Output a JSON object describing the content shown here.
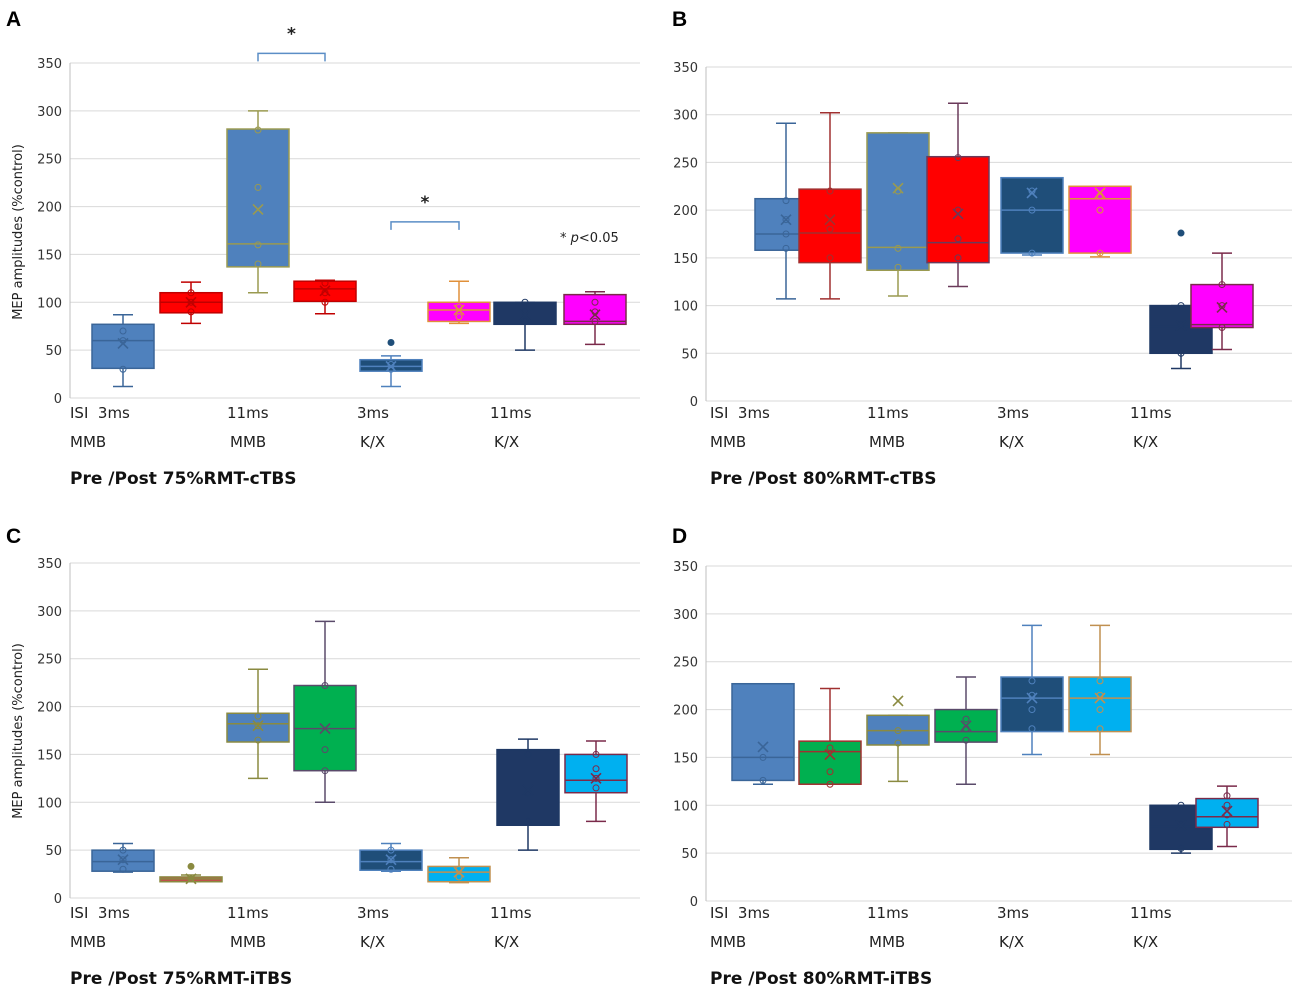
{
  "figure": {
    "panels": [
      "A",
      "B",
      "C",
      "D"
    ]
  },
  "chart_data": [
    {
      "panel": "A",
      "type": "box",
      "caption": "Pre /Post 75%RMT-cTBS",
      "ylabel": "MEP amplitudes (%control)",
      "ylim": [
        0,
        350
      ],
      "yticks": [
        0,
        50,
        100,
        150,
        200,
        250,
        300,
        350
      ],
      "x_row1": [
        "ISI  3ms",
        "11ms",
        "3ms",
        "11ms"
      ],
      "x_row2": [
        "MMB",
        "MMB",
        "K/X",
        "K/X"
      ],
      "significance": [
        {
          "between": [
            2,
            3
          ],
          "label": "*",
          "y": 360
        },
        {
          "between": [
            4,
            5
          ],
          "label": "*",
          "y": 184
        }
      ],
      "note": {
        "star": "*",
        "p": "p",
        "rest": "<0.05"
      },
      "series": [
        {
          "name": "MMB 3ms pre",
          "fill": "#4f81bd",
          "stroke": "#3a6598",
          "min": 12,
          "q1": 31,
          "median": 60,
          "q3": 77,
          "max": 87,
          "mean": 57,
          "points": [
            30,
            60,
            70
          ],
          "outliers": []
        },
        {
          "name": "MMB 3ms post",
          "fill": "#ff0000",
          "stroke": "#c00000",
          "min": 78,
          "q1": 89,
          "median": 100,
          "q3": 110,
          "max": 121,
          "mean": 100,
          "points": [
            90,
            100,
            110
          ],
          "outliers": []
        },
        {
          "name": "MMB 11ms pre",
          "fill": "#4f81bd",
          "stroke": "#9a9a50",
          "min": 110,
          "q1": 137,
          "median": 161,
          "q3": 281,
          "max": 300,
          "mean": 197,
          "points": [
            140,
            160,
            220,
            280
          ],
          "outliers": []
        },
        {
          "name": "MMB 11ms post",
          "fill": "#ff0000",
          "stroke": "#c00000",
          "min": 88,
          "q1": 101,
          "median": 114,
          "q3": 122,
          "max": 123,
          "mean": 112,
          "points": [
            100,
            110,
            120
          ],
          "outliers": []
        },
        {
          "name": "K/X 3ms pre",
          "fill": "#1f4e79",
          "stroke": "#4f81bd",
          "min": 12,
          "q1": 28,
          "median": 33,
          "q3": 40,
          "max": 44,
          "mean": 33,
          "points": [
            30,
            35
          ],
          "outliers": [
            58
          ]
        },
        {
          "name": "K/X 3ms post",
          "fill": "#ff00ff",
          "stroke": "#e0903a",
          "min": 78,
          "q1": 80,
          "median": 92,
          "q3": 100,
          "max": 122,
          "mean": 92,
          "points": [
            85,
            95
          ],
          "outliers": []
        },
        {
          "name": "K/X 11ms pre",
          "fill": "#1f3864",
          "stroke": "#1f3864",
          "min": 50,
          "q1": 77,
          "median": 87,
          "q3": 100,
          "max": 100,
          "mean": 87,
          "points": [
            80,
            90,
            100
          ],
          "outliers": []
        },
        {
          "name": "K/X 11ms post",
          "fill": "#ff00ff",
          "stroke": "#7a2a4a",
          "min": 56,
          "q1": 77,
          "median": 80,
          "q3": 108,
          "max": 111,
          "mean": 87,
          "points": [
            80,
            90,
            100
          ],
          "outliers": []
        }
      ]
    },
    {
      "panel": "B",
      "type": "box",
      "caption": "Pre /Post 80%RMT-cTBS",
      "ylabel": "",
      "ylim": [
        0,
        350
      ],
      "yticks": [
        0,
        50,
        100,
        150,
        200,
        250,
        300,
        350
      ],
      "x_row1": [
        "ISI  3ms",
        "11ms",
        "3ms",
        "11ms"
      ],
      "x_row2": [
        "MMB",
        "MMB",
        "K/X",
        "K/X"
      ],
      "significance": [],
      "series": [
        {
          "name": "MMB 3ms pre",
          "fill": "#4f81bd",
          "stroke": "#3a6598",
          "min": 107,
          "q1": 158,
          "median": 175,
          "q3": 212,
          "max": 291,
          "mean": 190,
          "points": [
            160,
            175,
            190,
            210
          ],
          "outliers": []
        },
        {
          "name": "MMB 3ms post",
          "fill": "#ff0000",
          "stroke": "#a03030",
          "min": 107,
          "q1": 145,
          "median": 176,
          "q3": 222,
          "max": 302,
          "mean": 190,
          "points": [
            150,
            180,
            220
          ],
          "outliers": []
        },
        {
          "name": "MMB 11ms pre",
          "fill": "#4f81bd",
          "stroke": "#9a9a50",
          "min": 110,
          "q1": 137,
          "median": 161,
          "q3": 281,
          "max": 281,
          "mean": 223,
          "points": [
            140,
            160,
            220
          ],
          "outliers": []
        },
        {
          "name": "MMB 11ms post",
          "fill": "#ff0000",
          "stroke": "#6a3a5a",
          "min": 120,
          "q1": 145,
          "median": 166,
          "q3": 256,
          "max": 312,
          "mean": 196,
          "points": [
            150,
            170,
            200,
            255
          ],
          "outliers": []
        },
        {
          "name": "K/X 3ms pre",
          "fill": "#1f4e79",
          "stroke": "#4f81bd",
          "min": 153,
          "q1": 155,
          "median": 200,
          "q3": 234,
          "max": 234,
          "mean": 218,
          "points": [
            155,
            200,
            220
          ],
          "outliers": []
        },
        {
          "name": "K/X 3ms post",
          "fill": "#ff00ff",
          "stroke": "#e0903a",
          "min": 151,
          "q1": 155,
          "median": 212,
          "q3": 225,
          "max": 225,
          "mean": 218,
          "points": [
            155,
            200,
            215
          ],
          "outliers": []
        },
        {
          "name": "K/X 11ms pre",
          "fill": "#1f3864",
          "stroke": "#1f3864",
          "min": 34,
          "q1": 50,
          "median": 78,
          "q3": 100,
          "max": 100,
          "mean": 79,
          "points": [
            50,
            80,
            100
          ],
          "outliers": [
            176
          ]
        },
        {
          "name": "K/X 11ms post",
          "fill": "#ff00ff",
          "stroke": "#7a2a4a",
          "min": 54,
          "q1": 77,
          "median": 80,
          "q3": 122,
          "max": 155,
          "mean": 98,
          "points": [
            77,
            100,
            122
          ],
          "outliers": []
        }
      ]
    },
    {
      "panel": "C",
      "type": "box",
      "caption": "Pre /Post 75%RMT-iTBS",
      "ylabel": "MEP amplitudes (%control)",
      "ylim": [
        0,
        350
      ],
      "yticks": [
        0,
        50,
        100,
        150,
        200,
        250,
        300,
        350
      ],
      "x_row1": [
        "ISI  3ms",
        "11ms",
        "3ms",
        "11ms"
      ],
      "x_row2": [
        "MMB",
        "MMB",
        "K/X",
        "K/X"
      ],
      "significance": [],
      "series": [
        {
          "name": "MMB 3ms pre",
          "fill": "#4f81bd",
          "stroke": "#3a6598",
          "min": 27,
          "q1": 28,
          "median": 38,
          "q3": 50,
          "max": 57,
          "mean": 40,
          "points": [
            30,
            40,
            50
          ],
          "outliers": []
        },
        {
          "name": "MMB 3ms post",
          "fill": "#c0504d",
          "stroke": "#8a8a40",
          "min": 17,
          "q1": 17,
          "median": 20,
          "q3": 22,
          "max": 24,
          "mean": 20,
          "points": [
            20
          ],
          "outliers": [
            33
          ]
        },
        {
          "name": "MMB 11ms pre",
          "fill": "#4f81bd",
          "stroke": "#8a8a40",
          "min": 125,
          "q1": 163,
          "median": 182,
          "q3": 193,
          "max": 239,
          "mean": 180,
          "points": [
            165,
            180,
            190
          ],
          "outliers": []
        },
        {
          "name": "MMB 11ms post",
          "fill": "#00b050",
          "stroke": "#5a4a6a",
          "min": 100,
          "q1": 133,
          "median": 177,
          "q3": 222,
          "max": 289,
          "mean": 177,
          "points": [
            133,
            155,
            222
          ],
          "outliers": []
        },
        {
          "name": "K/X 3ms pre",
          "fill": "#1f4e79",
          "stroke": "#4f81bd",
          "min": 28,
          "q1": 29,
          "median": 38,
          "q3": 50,
          "max": 57,
          "mean": 40,
          "points": [
            30,
            40,
            50
          ],
          "outliers": []
        },
        {
          "name": "K/X 3ms post",
          "fill": "#00b0f0",
          "stroke": "#c09050",
          "min": 16,
          "q1": 17,
          "median": 27,
          "q3": 33,
          "max": 42,
          "mean": 27,
          "points": [
            22,
            30
          ],
          "outliers": []
        },
        {
          "name": "K/X 11ms pre",
          "fill": "#1f3864",
          "stroke": "#1f3864",
          "min": 50,
          "q1": 76,
          "median": 110,
          "q3": 155,
          "max": 166,
          "mean": 113,
          "points": [
            80,
            110,
            150
          ],
          "outliers": []
        },
        {
          "name": "K/X 11ms post",
          "fill": "#00b0f0",
          "stroke": "#7a2a4a",
          "min": 80,
          "q1": 110,
          "median": 123,
          "q3": 150,
          "max": 164,
          "mean": 125,
          "points": [
            115,
            125,
            135,
            150
          ],
          "outliers": []
        }
      ]
    },
    {
      "panel": "D",
      "type": "box",
      "caption": "Pre /Post 80%RMT-iTBS",
      "ylabel": "",
      "ylim": [
        0,
        350
      ],
      "yticks": [
        0,
        50,
        100,
        150,
        200,
        250,
        300,
        350
      ],
      "x_row1": [
        "ISI  3ms",
        "11ms",
        "3ms",
        "11ms"
      ],
      "x_row2": [
        "MMB",
        "MMB",
        "K/X",
        "K/X"
      ],
      "significance": [],
      "series": [
        {
          "name": "MMB 3ms pre",
          "fill": "#4f81bd",
          "stroke": "#3a6598",
          "min": 122,
          "q1": 126,
          "median": 150,
          "q3": 227,
          "max": 227,
          "mean": 161,
          "points": [
            126,
            150
          ],
          "outliers": []
        },
        {
          "name": "MMB 3ms post",
          "fill": "#00b050",
          "stroke": "#a03030",
          "min": 122,
          "q1": 122,
          "median": 156,
          "q3": 167,
          "max": 222,
          "mean": 153,
          "points": [
            122,
            135,
            160
          ],
          "outliers": []
        },
        {
          "name": "MMB 11ms pre",
          "fill": "#4f81bd",
          "stroke": "#8a8a40",
          "min": 125,
          "q1": 163,
          "median": 178,
          "q3": 194,
          "max": 194,
          "mean": 209,
          "points": [
            165,
            178
          ],
          "outliers": []
        },
        {
          "name": "MMB 11ms post",
          "fill": "#00b050",
          "stroke": "#5a4a6a",
          "min": 122,
          "q1": 166,
          "median": 177,
          "q3": 200,
          "max": 234,
          "mean": 183,
          "points": [
            168,
            180,
            190
          ],
          "outliers": []
        },
        {
          "name": "K/X 3ms pre",
          "fill": "#1f4e79",
          "stroke": "#4f81bd",
          "min": 153,
          "q1": 177,
          "median": 212,
          "q3": 234,
          "max": 288,
          "mean": 212,
          "points": [
            180,
            200,
            215,
            230
          ],
          "outliers": []
        },
        {
          "name": "K/X 3ms post",
          "fill": "#00b0f0",
          "stroke": "#c09050",
          "min": 153,
          "q1": 177,
          "median": 212,
          "q3": 234,
          "max": 288,
          "mean": 212,
          "points": [
            180,
            200,
            215,
            230
          ],
          "outliers": []
        },
        {
          "name": "K/X 11ms pre",
          "fill": "#1f3864",
          "stroke": "#1f3864",
          "min": 50,
          "q1": 54,
          "median": 78,
          "q3": 100,
          "max": 100,
          "mean": 79,
          "points": [
            55,
            80,
            100
          ],
          "outliers": []
        },
        {
          "name": "K/X 11ms post",
          "fill": "#00b0f0",
          "stroke": "#7a2a4a",
          "min": 57,
          "q1": 77,
          "median": 88,
          "q3": 107,
          "max": 120,
          "mean": 94,
          "points": [
            80,
            90,
            100,
            110
          ],
          "outliers": []
        }
      ]
    }
  ]
}
